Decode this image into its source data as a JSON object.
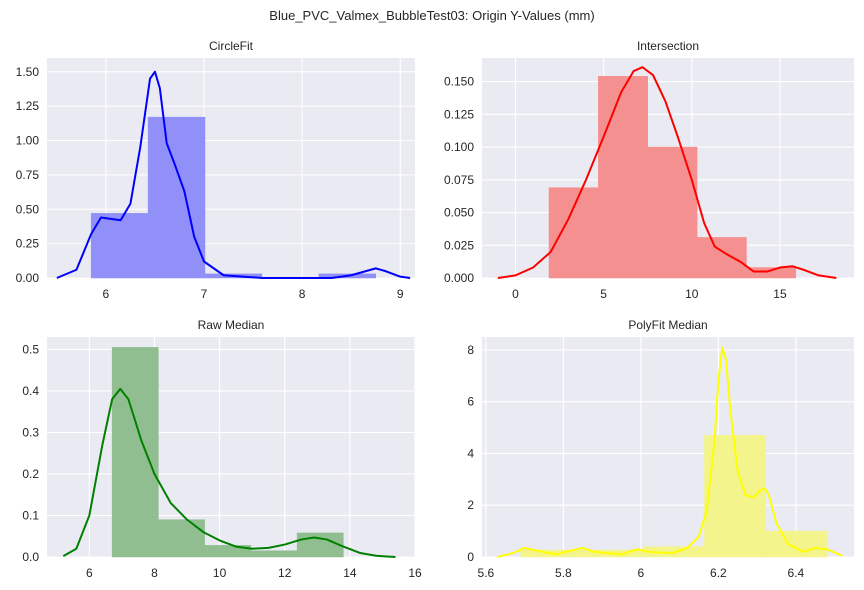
{
  "figure": {
    "title": "Blue_PVC_Valmex_BubbleTest03: Origin Y-Values (mm)"
  },
  "chart_data": [
    {
      "type": "bar",
      "title": "CircleFit",
      "color": "#0000ff",
      "bar_color": "#9090f8",
      "xlim": [
        5.4,
        9.15
      ],
      "ylim": [
        0,
        1.6
      ],
      "xticks": [
        6,
        7,
        8,
        9
      ],
      "yticks": [
        0.0,
        0.25,
        0.5,
        0.75,
        1.0,
        1.25,
        1.5
      ],
      "ytick_labels": [
        "0.00",
        "0.25",
        "0.50",
        "0.75",
        "1.00",
        "1.25",
        "1.50"
      ],
      "bins": [
        {
          "x0": 5.85,
          "x1": 6.43,
          "value": 0.47
        },
        {
          "x0": 6.43,
          "x1": 7.01,
          "value": 1.17
        },
        {
          "x0": 7.01,
          "x1": 7.59,
          "value": 0.03
        },
        {
          "x0": 7.59,
          "x1": 8.17,
          "value": 0.0
        },
        {
          "x0": 8.17,
          "x1": 8.75,
          "value": 0.03
        }
      ],
      "kde": [
        [
          5.5,
          0.0
        ],
        [
          5.7,
          0.06
        ],
        [
          5.85,
          0.32
        ],
        [
          5.95,
          0.44
        ],
        [
          6.05,
          0.43
        ],
        [
          6.15,
          0.42
        ],
        [
          6.25,
          0.54
        ],
        [
          6.35,
          0.95
        ],
        [
          6.45,
          1.45
        ],
        [
          6.5,
          1.5
        ],
        [
          6.55,
          1.38
        ],
        [
          6.62,
          0.98
        ],
        [
          6.7,
          0.83
        ],
        [
          6.8,
          0.63
        ],
        [
          6.9,
          0.3
        ],
        [
          7.0,
          0.12
        ],
        [
          7.2,
          0.02
        ],
        [
          7.6,
          0.0
        ],
        [
          8.3,
          0.0
        ],
        [
          8.5,
          0.02
        ],
        [
          8.65,
          0.05
        ],
        [
          8.75,
          0.07
        ],
        [
          8.85,
          0.05
        ],
        [
          9.0,
          0.01
        ],
        [
          9.1,
          0.0
        ]
      ]
    },
    {
      "type": "bar",
      "title": "Intersection",
      "color": "#ff0000",
      "bar_color": "#f59090",
      "xlim": [
        -1.9,
        19.2
      ],
      "ylim": [
        0,
        0.168
      ],
      "xticks": [
        0,
        5,
        10,
        15
      ],
      "yticks": [
        0.0,
        0.025,
        0.05,
        0.075,
        0.1,
        0.125,
        0.15
      ],
      "ytick_labels": [
        "0.000",
        "0.025",
        "0.050",
        "0.075",
        "0.100",
        "0.125",
        "0.150"
      ],
      "bins": [
        {
          "x0": 1.9,
          "x1": 4.7,
          "value": 0.069
        },
        {
          "x0": 4.7,
          "x1": 7.5,
          "value": 0.154
        },
        {
          "x0": 7.5,
          "x1": 10.3,
          "value": 0.1
        },
        {
          "x0": 10.3,
          "x1": 13.1,
          "value": 0.031
        },
        {
          "x0": 13.1,
          "x1": 15.9,
          "value": 0.008
        }
      ],
      "kde": [
        [
          -1.0,
          0.0
        ],
        [
          0.0,
          0.002
        ],
        [
          1.0,
          0.008
        ],
        [
          2.0,
          0.02
        ],
        [
          3.0,
          0.045
        ],
        [
          4.0,
          0.075
        ],
        [
          5.0,
          0.108
        ],
        [
          6.0,
          0.142
        ],
        [
          6.7,
          0.158
        ],
        [
          7.2,
          0.161
        ],
        [
          7.8,
          0.155
        ],
        [
          8.5,
          0.135
        ],
        [
          9.2,
          0.108
        ],
        [
          10.0,
          0.075
        ],
        [
          10.7,
          0.042
        ],
        [
          11.3,
          0.024
        ],
        [
          12.0,
          0.018
        ],
        [
          12.8,
          0.012
        ],
        [
          13.5,
          0.005
        ],
        [
          14.3,
          0.005
        ],
        [
          15.0,
          0.008
        ],
        [
          15.7,
          0.009
        ],
        [
          16.4,
          0.006
        ],
        [
          17.2,
          0.002
        ],
        [
          18.2,
          0.0
        ]
      ]
    },
    {
      "type": "bar",
      "title": "Raw Median",
      "color": "#008000",
      "bar_color": "#90be90",
      "xlim": [
        4.7,
        16.0
      ],
      "ylim": [
        0,
        0.53
      ],
      "xticks": [
        6,
        8,
        10,
        12,
        14,
        16
      ],
      "yticks": [
        0.0,
        0.1,
        0.2,
        0.3,
        0.4,
        0.5
      ],
      "ytick_labels": [
        "0.0",
        "0.1",
        "0.2",
        "0.3",
        "0.4",
        "0.5"
      ],
      "bins": [
        {
          "x0": 6.7,
          "x1": 8.12,
          "value": 0.505
        },
        {
          "x0": 8.12,
          "x1": 9.54,
          "value": 0.09
        },
        {
          "x0": 9.54,
          "x1": 10.96,
          "value": 0.028
        },
        {
          "x0": 10.96,
          "x1": 12.38,
          "value": 0.015
        },
        {
          "x0": 12.38,
          "x1": 13.8,
          "value": 0.058
        }
      ],
      "kde": [
        [
          5.2,
          0.002
        ],
        [
          5.6,
          0.02
        ],
        [
          6.0,
          0.1
        ],
        [
          6.4,
          0.27
        ],
        [
          6.7,
          0.38
        ],
        [
          6.95,
          0.405
        ],
        [
          7.2,
          0.38
        ],
        [
          7.6,
          0.28
        ],
        [
          8.0,
          0.2
        ],
        [
          8.5,
          0.13
        ],
        [
          9.0,
          0.09
        ],
        [
          9.5,
          0.06
        ],
        [
          10.0,
          0.04
        ],
        [
          10.5,
          0.025
        ],
        [
          11.0,
          0.02
        ],
        [
          11.5,
          0.022
        ],
        [
          12.0,
          0.03
        ],
        [
          12.5,
          0.042
        ],
        [
          12.9,
          0.047
        ],
        [
          13.3,
          0.042
        ],
        [
          13.8,
          0.025
        ],
        [
          14.3,
          0.01
        ],
        [
          14.8,
          0.003
        ],
        [
          15.4,
          0.0
        ]
      ]
    },
    {
      "type": "bar",
      "title": "PolyFit Median",
      "color": "#ffff00",
      "bar_color": "#f4f48c",
      "xlim": [
        5.59,
        6.55
      ],
      "ylim": [
        0,
        8.5
      ],
      "xticks": [
        5.6,
        5.8,
        6.0,
        6.2,
        6.4
      ],
      "ytick_labels": [
        "0",
        "2",
        "4",
        "6",
        "8"
      ],
      "yticks": [
        0,
        2,
        4,
        6,
        8
      ],
      "bins": [
        {
          "x0": 5.69,
          "x1": 5.848,
          "value": 0.27
        },
        {
          "x0": 5.848,
          "x1": 6.006,
          "value": 0.27
        },
        {
          "x0": 6.006,
          "x1": 6.164,
          "value": 0.4
        },
        {
          "x0": 6.164,
          "x1": 6.322,
          "value": 4.7
        },
        {
          "x0": 6.322,
          "x1": 6.48,
          "value": 1.0
        }
      ],
      "kde": [
        [
          5.63,
          0.0
        ],
        [
          5.67,
          0.15
        ],
        [
          5.7,
          0.35
        ],
        [
          5.73,
          0.25
        ],
        [
          5.78,
          0.1
        ],
        [
          5.82,
          0.25
        ],
        [
          5.85,
          0.35
        ],
        [
          5.88,
          0.2
        ],
        [
          5.95,
          0.1
        ],
        [
          5.99,
          0.3
        ],
        [
          6.02,
          0.2
        ],
        [
          6.08,
          0.15
        ],
        [
          6.12,
          0.35
        ],
        [
          6.15,
          0.8
        ],
        [
          6.17,
          1.8
        ],
        [
          6.19,
          4.5
        ],
        [
          6.2,
          6.8
        ],
        [
          6.21,
          8.1
        ],
        [
          6.22,
          7.6
        ],
        [
          6.23,
          5.8
        ],
        [
          6.25,
          3.3
        ],
        [
          6.27,
          2.4
        ],
        [
          6.29,
          2.3
        ],
        [
          6.31,
          2.6
        ],
        [
          6.32,
          2.65
        ],
        [
          6.33,
          2.4
        ],
        [
          6.35,
          1.3
        ],
        [
          6.38,
          0.5
        ],
        [
          6.42,
          0.2
        ],
        [
          6.45,
          0.35
        ],
        [
          6.48,
          0.3
        ],
        [
          6.52,
          0.05
        ]
      ]
    }
  ]
}
